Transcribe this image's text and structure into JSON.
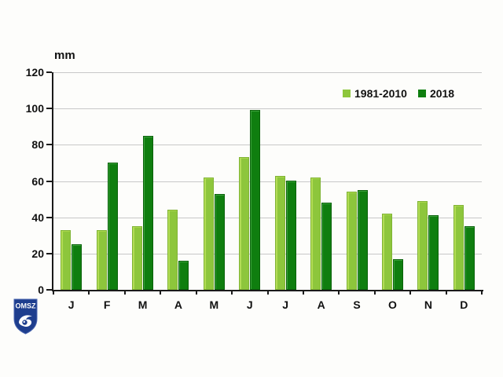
{
  "chart_data": {
    "type": "bar",
    "title": "",
    "ylabel": "mm",
    "categories": [
      "J",
      "F",
      "M",
      "A",
      "M",
      "J",
      "J",
      "A",
      "S",
      "O",
      "N",
      "D"
    ],
    "series": [
      {
        "name": "1981-2010",
        "color": "#8DC63C",
        "values": [
          33,
          33,
          35,
          44,
          62,
          73,
          63,
          62,
          54,
          42,
          49,
          47
        ]
      },
      {
        "name": "2018",
        "color": "#0F7E0F",
        "values": [
          25,
          70,
          85,
          16,
          53,
          99,
          60,
          48,
          55,
          17,
          41,
          35
        ]
      }
    ],
    "ylim": [
      0,
      120
    ],
    "yticks": [
      0,
      20,
      40,
      60,
      80,
      100,
      120
    ],
    "grid": true,
    "legend_position": "top-right",
    "gridline_color": "#C8C8C8",
    "axis_color": "#1a1a1a"
  },
  "logo": {
    "text": "OMSZ",
    "shield_color": "#1E3E8E",
    "text_color": "#FFFFFF"
  }
}
